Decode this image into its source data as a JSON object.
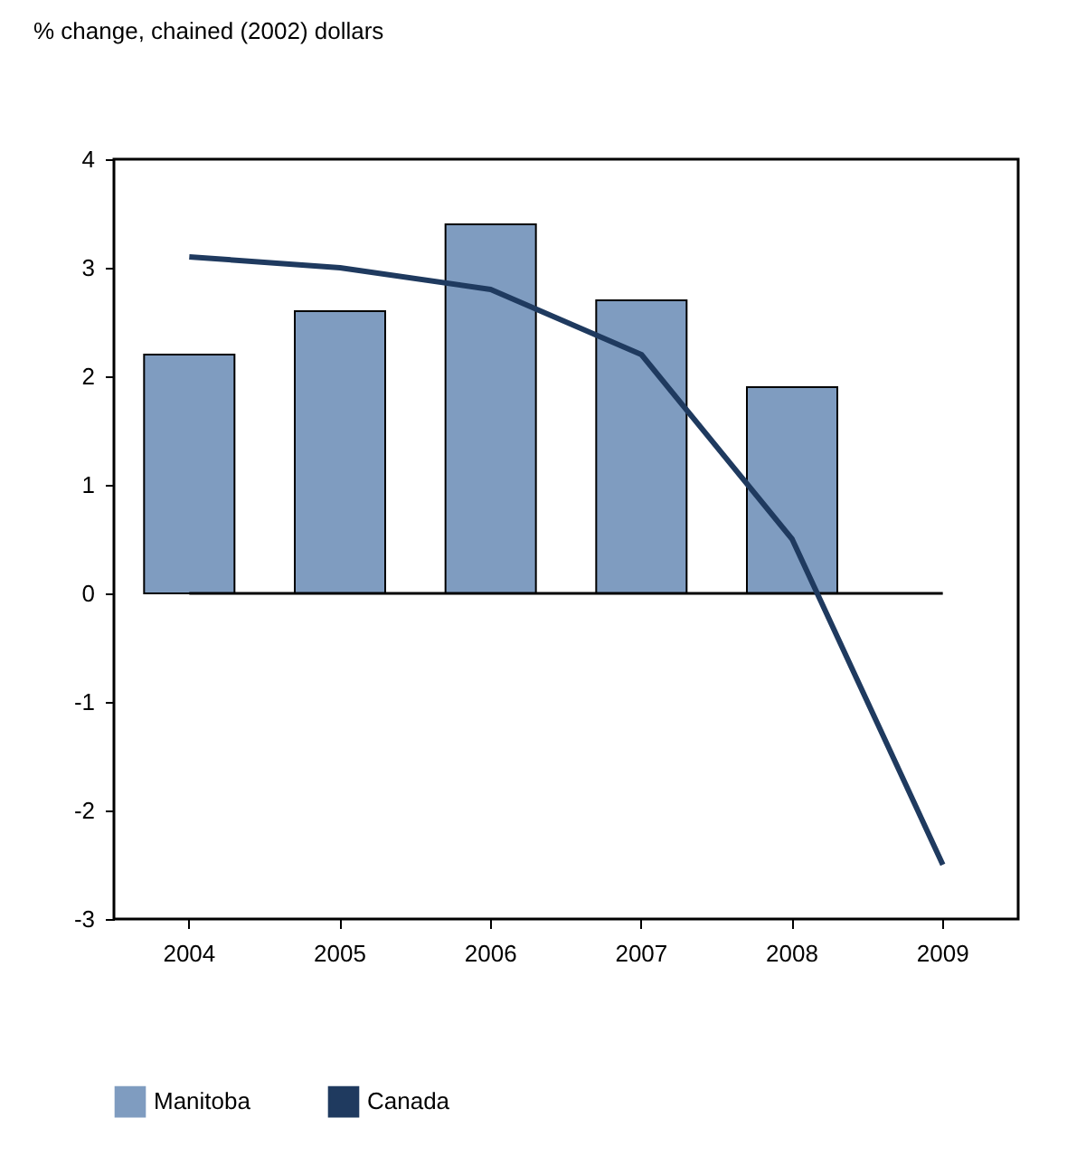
{
  "chart_data": {
    "type": "bar",
    "ylabel": "% change, chained (2002) dollars",
    "categories": [
      "2004",
      "2005",
      "2006",
      "2007",
      "2008",
      "2009"
    ],
    "series": [
      {
        "name": "Manitoba",
        "color": "#7f9cc0",
        "values": [
          2.2,
          2.6,
          3.4,
          2.7,
          1.9,
          null
        ]
      },
      {
        "name": "Canada",
        "type": "line",
        "color": "#1f3a5f",
        "values": [
          3.1,
          3.0,
          2.8,
          2.2,
          0.5,
          -2.5
        ]
      }
    ],
    "ylim": [
      -3,
      4
    ],
    "yticks": [
      -3,
      -2,
      -1,
      0,
      1,
      2,
      3,
      4
    ],
    "grid": false,
    "legend": "bottom",
    "marker": "none",
    "line_style": "solid",
    "ref_lines": [
      {
        "axis": "y",
        "value": 0,
        "color": "#000000"
      }
    ]
  }
}
